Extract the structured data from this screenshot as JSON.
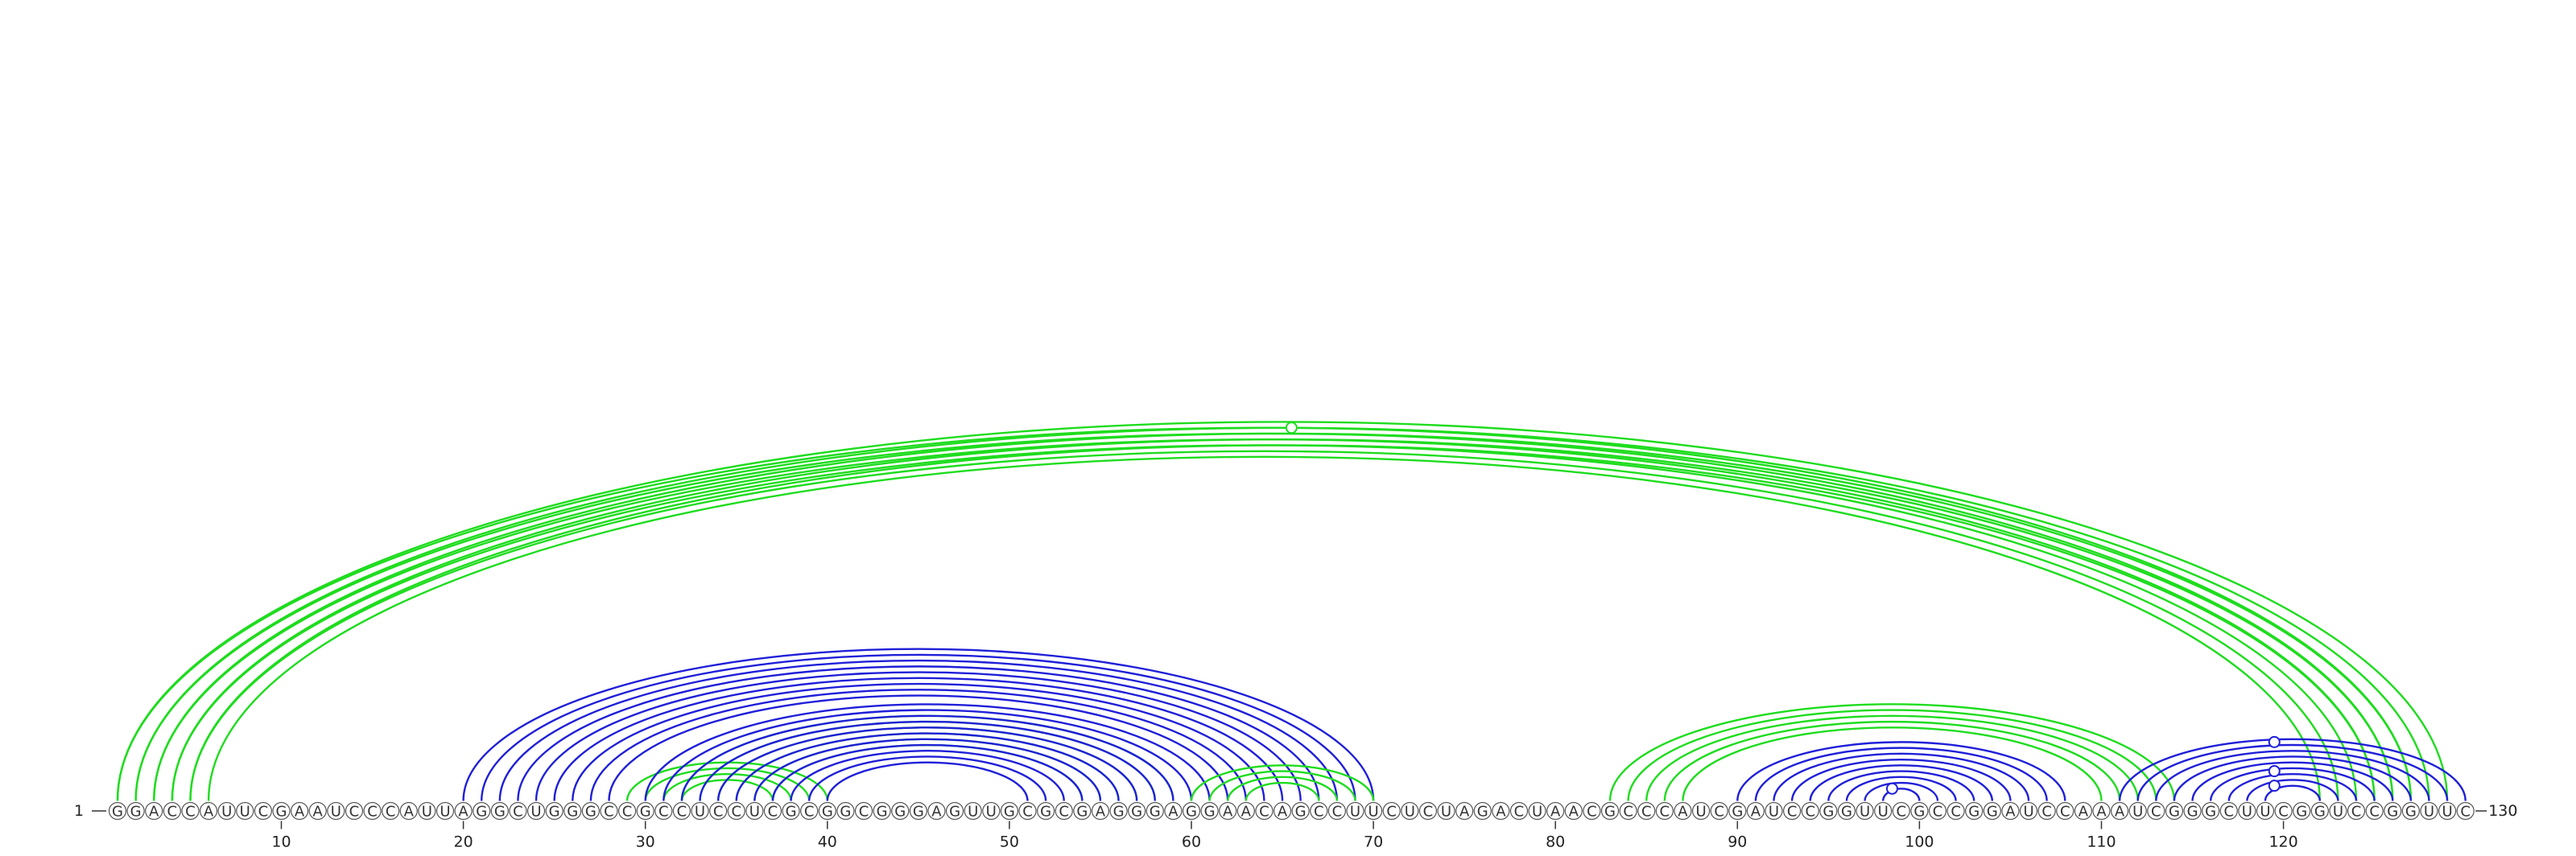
{
  "sequence": "GGACCAUUCGAAUCCCAUUAGGCUGGGCCGCCUCCUCGCGGCGGGAGUUGCGCGAGGGAGGAACAGCCUUCUCUAGACUAACGCCCAUCGAUCCGGUUCGCCGGAUCCAAAUCGGGCUUCGGUCCGGUUC",
  "start_label": "1",
  "end_label": "130",
  "ticks": [
    10,
    20,
    30,
    40,
    50,
    60,
    70,
    80,
    90,
    100,
    110,
    120
  ],
  "colors": {
    "green": "#1edc1e",
    "blue": "#1f1fd9"
  },
  "helices": [
    {
      "color": "green",
      "pairs": [
        [
          1,
          129
        ],
        [
          2,
          128
        ],
        [
          3,
          127
        ],
        [
          4,
          126
        ],
        [
          5,
          125
        ]
      ]
    },
    {
      "color": "green",
      "pairs": [
        [
          1,
          127
        ],
        [
          2,
          126
        ],
        [
          3,
          125
        ],
        [
          4,
          124
        ],
        [
          5,
          123
        ],
        [
          6,
          122
        ]
      ]
    },
    {
      "color": "blue",
      "pairs": [
        [
          20,
          70
        ],
        [
          21,
          69
        ],
        [
          22,
          68
        ],
        [
          23,
          67
        ],
        [
          24,
          66
        ],
        [
          25,
          65
        ],
        [
          26,
          64
        ],
        [
          27,
          63
        ],
        [
          28,
          62
        ]
      ]
    },
    {
      "color": "green",
      "pairs": [
        [
          29,
          40
        ],
        [
          30,
          39
        ],
        [
          31,
          38
        ],
        [
          32,
          37
        ]
      ]
    },
    {
      "color": "green",
      "pairs": [
        [
          32,
          59
        ],
        [
          33,
          58
        ],
        [
          34,
          57
        ],
        [
          35,
          56
        ],
        [
          36,
          55
        ],
        [
          37,
          54
        ]
      ]
    },
    {
      "color": "blue",
      "pairs": [
        [
          30,
          61
        ],
        [
          31,
          60
        ],
        [
          32,
          59
        ],
        [
          33,
          58
        ],
        [
          34,
          57
        ],
        [
          35,
          56
        ],
        [
          36,
          55
        ],
        [
          37,
          54
        ],
        [
          38,
          53
        ],
        [
          39,
          52
        ],
        [
          40,
          51
        ]
      ]
    },
    {
      "color": "green",
      "pairs": [
        [
          60,
          70
        ],
        [
          61,
          69
        ],
        [
          62,
          68
        ],
        [
          63,
          67
        ]
      ]
    },
    {
      "color": "green",
      "pairs": [
        [
          83,
          114
        ],
        [
          84,
          113
        ],
        [
          85,
          112
        ],
        [
          86,
          111
        ],
        [
          87,
          110
        ]
      ]
    },
    {
      "color": "blue",
      "pairs": [
        [
          90,
          108
        ],
        [
          91,
          107
        ],
        [
          92,
          106
        ],
        [
          93,
          105
        ],
        [
          94,
          104
        ],
        [
          95,
          103
        ],
        [
          96,
          102
        ],
        [
          97,
          101
        ],
        [
          98,
          100
        ]
      ]
    },
    {
      "color": "blue",
      "pairs": [
        [
          111,
          130
        ],
        [
          112,
          129
        ],
        [
          113,
          128
        ],
        [
          114,
          127
        ],
        [
          115,
          126
        ],
        [
          116,
          125
        ],
        [
          117,
          124
        ],
        [
          118,
          123
        ],
        [
          119,
          122
        ]
      ]
    }
  ],
  "markers": [
    {
      "color": "green",
      "pos": 65.5,
      "span": 126
    },
    {
      "color": "blue",
      "pos": 98.5,
      "span": 2
    },
    {
      "color": "blue",
      "pos": 119.5,
      "span": 3
    },
    {
      "color": "blue",
      "pos": 119.5,
      "span": 8
    },
    {
      "color": "blue",
      "pos": 119.5,
      "span": 18
    }
  ]
}
